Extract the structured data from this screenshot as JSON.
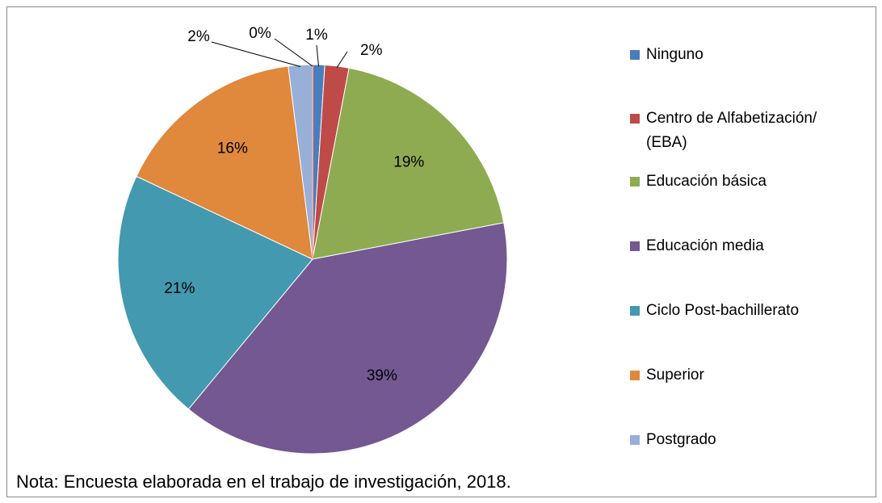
{
  "chart_data": {
    "type": "pie",
    "categories": [
      "Ninguno",
      "Centro de Alfabetización/ (EBA)",
      "Educación básica",
      "Educación media",
      "Ciclo Post-bachillerato",
      "Superior",
      "Postgrado",
      null
    ],
    "values": [
      1,
      2,
      19,
      39,
      21,
      16,
      2,
      0
    ],
    "value_labels": [
      "1%",
      "2%",
      "19%",
      "39%",
      "21%",
      "16%",
      "2%",
      "0%"
    ],
    "colors": [
      "#4a7ebb",
      "#be4b48",
      "#8eab51",
      "#735892",
      "#4299b0",
      "#e0883c",
      "#98b0d8",
      "#f2a8a0"
    ],
    "legend": "right",
    "note": "Nota: Encuesta elaborada en el trabajo de investigación, 2018."
  }
}
